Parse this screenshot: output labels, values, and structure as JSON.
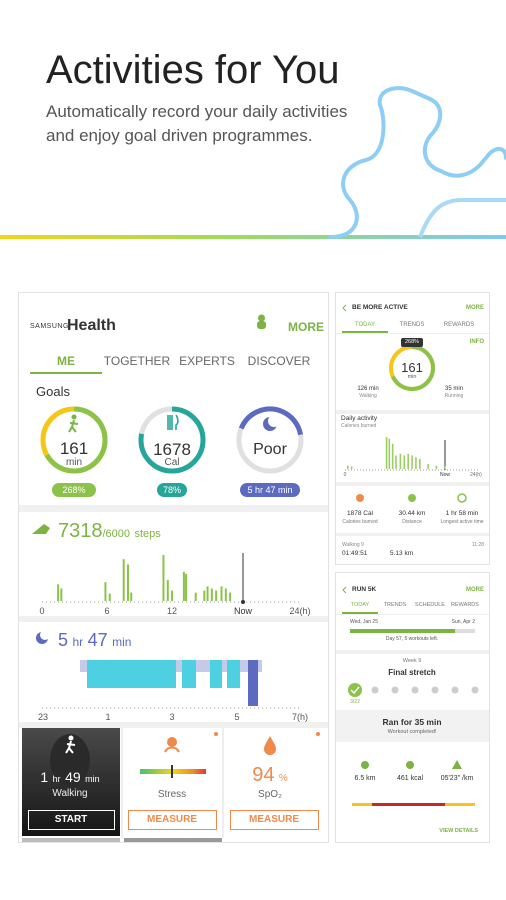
{
  "header": {
    "title": "Activities for You",
    "subtitle": [
      "Automatically record your daily activities",
      "and enjoy goal driven programmes."
    ]
  },
  "app": {
    "brand": [
      "SAMSUNG",
      "Health"
    ],
    "more": "MORE",
    "tabs": [
      "ME",
      "TOGETHER",
      "EXPERTS",
      "DISCOVER"
    ],
    "goals_label": "Goals",
    "goals": [
      {
        "value": "161",
        "unit": "min",
        "badge": "268%"
      },
      {
        "value": "1678",
        "unit": "Cal",
        "badge": "78%"
      },
      {
        "value": "Poor",
        "badge": "5 hr 47 min"
      }
    ],
    "steps": {
      "value": "7318",
      "goal": "/6000",
      "unit": "steps",
      "axis": [
        "0",
        "6",
        "12",
        "Now",
        "24(h)"
      ],
      "chart": {
        "type": "bar",
        "xlim": [
          0,
          24
        ],
        "x": [
          1.5,
          1.8,
          5.9,
          6.3,
          7.6,
          8.0,
          8.3,
          11.3,
          11.7,
          12.1,
          13.2,
          13.4,
          14.3,
          15.1,
          15.4,
          15.8,
          16.2,
          16.7,
          17.1,
          17.5
        ],
        "values": [
          320,
          240,
          360,
          140,
          800,
          700,
          160,
          880,
          400,
          200,
          560,
          520,
          160,
          200,
          280,
          240,
          200,
          280,
          240,
          160
        ]
      }
    },
    "sleep": {
      "parts": [
        "5",
        "hr",
        "47",
        "min"
      ],
      "axis": [
        "23",
        "1",
        "3",
        "5",
        "7(h)"
      ]
    },
    "tiles": [
      {
        "parts": [
          "1",
          "hr",
          "49",
          "min"
        ],
        "label": "Walking",
        "button": "START"
      },
      {
        "label": "Stress",
        "button": "MEASURE"
      },
      {
        "value": "94",
        "unit": "%",
        "label": "SpO₂",
        "button": "MEASURE"
      }
    ]
  },
  "be_more_active": {
    "title": "BE MORE ACTIVE",
    "more": "MORE",
    "tabs": [
      "TODAY",
      "TRENDS",
      "REWARDS"
    ],
    "info": "INFO",
    "badge": "268%",
    "value": "161",
    "unit": "min",
    "walking": [
      "126 min",
      "Walking"
    ],
    "running": [
      "35 min",
      "Running"
    ],
    "daily": "Daily activity",
    "daily_sub": "Calories burned",
    "chart": {
      "type": "bar",
      "xlim": [
        0,
        24
      ],
      "x": [
        0.5,
        1.2,
        7.5,
        8.0,
        8.6,
        9.2,
        10.0,
        10.7,
        11.4,
        12.1,
        12.8,
        13.5,
        15.0,
        16.5,
        18.0
      ],
      "values": [
        20,
        15,
        190,
        180,
        150,
        80,
        90,
        80,
        90,
        80,
        70,
        60,
        30,
        20,
        15
      ]
    },
    "axis": [
      "0",
      "Now",
      "24(h)"
    ],
    "stats": [
      [
        "1878 Cal",
        "Calories burned"
      ],
      [
        "30.44 km",
        "Distance"
      ],
      [
        "1 hr 58 min",
        "Longest active time"
      ]
    ],
    "workout": {
      "name": "Walking 9",
      "time": "11:28",
      "duration": "01:49:51",
      "distance": "5.13 km"
    }
  },
  "run_5k": {
    "title": "RUN 5K",
    "more": "MORE",
    "tabs": [
      "TODAY",
      "TRENDS",
      "SCHEDULE",
      "REWARDS"
    ],
    "start": "Wed, Jan 25",
    "end": "Sun, Apr 2",
    "progress": "Day 57, 5 workouts left.",
    "week": "Week 9",
    "stage": "Final stretch",
    "date": "3/22",
    "result": "Ran for 35 min",
    "result_sub": "Workout completed!",
    "stats": [
      "6.5 km",
      "461 kcal",
      "05'23\" /km"
    ],
    "details": "VIEW DETAILS"
  }
}
